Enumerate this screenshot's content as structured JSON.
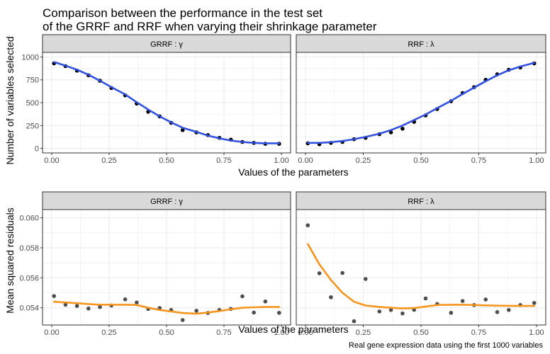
{
  "title": {
    "line1": "Comparison between the performance in the test set",
    "line2": "of the GRRF and RRF when varying their shrinkage parameter"
  },
  "caption": "Real gene expression data using the first 1000 variables",
  "colors": {
    "panel_strip": "#d9d9d9",
    "grid": "#ebebeb",
    "smooth_top": "#3152e0",
    "smooth_bottom": "#f7941d",
    "points_top": "#000000",
    "points_bottom": "#4d4d4d"
  },
  "chart_data": [
    {
      "type": "scatter",
      "facet": "GRRF : γ",
      "xlabel": "Values of the parameters",
      "ylabel": "Number of variables selected",
      "xlim": [
        0,
        1
      ],
      "ylim": [
        0,
        1000
      ],
      "x_ticks": [
        "0.00",
        "0.25",
        "0.50",
        "0.75",
        "1.00"
      ],
      "y_ticks": [
        "0",
        "250",
        "500",
        "750",
        "1000"
      ],
      "grid": true,
      "points": {
        "x": [
          0.01,
          0.06,
          0.11,
          0.16,
          0.21,
          0.26,
          0.32,
          0.37,
          0.42,
          0.47,
          0.52,
          0.57,
          0.63,
          0.68,
          0.73,
          0.78,
          0.83,
          0.88,
          0.93,
          0.99
        ],
        "y": [
          930,
          900,
          850,
          800,
          740,
          660,
          580,
          490,
          400,
          350,
          280,
          200,
          175,
          145,
          115,
          95,
          70,
          60,
          50,
          50
        ]
      },
      "smooth": {
        "x": [
          0.01,
          0.06,
          0.11,
          0.16,
          0.21,
          0.26,
          0.32,
          0.37,
          0.42,
          0.47,
          0.52,
          0.57,
          0.63,
          0.68,
          0.73,
          0.78,
          0.83,
          0.88,
          0.93,
          0.99
        ],
        "y": [
          945,
          905,
          860,
          805,
          740,
          670,
          590,
          505,
          425,
          350,
          285,
          225,
          180,
          140,
          110,
          85,
          70,
          60,
          55,
          55
        ]
      }
    },
    {
      "type": "scatter",
      "facet": "RRF : λ",
      "xlabel": "Values of the parameters",
      "ylabel": "Number of variables selected",
      "xlim": [
        0,
        1
      ],
      "ylim": [
        0,
        1000
      ],
      "x_ticks": [
        "0.00",
        "0.25",
        "0.50",
        "0.75",
        "1.00"
      ],
      "grid": true,
      "points": {
        "x": [
          0.01,
          0.06,
          0.11,
          0.16,
          0.21,
          0.26,
          0.32,
          0.37,
          0.42,
          0.47,
          0.52,
          0.57,
          0.63,
          0.68,
          0.73,
          0.78,
          0.83,
          0.88,
          0.93,
          0.99
        ],
        "y": [
          55,
          45,
          60,
          70,
          100,
          115,
          155,
          175,
          215,
          290,
          360,
          430,
          515,
          605,
          670,
          750,
          810,
          860,
          885,
          930
        ]
      },
      "smooth": {
        "x": [
          0.01,
          0.06,
          0.11,
          0.16,
          0.21,
          0.26,
          0.32,
          0.37,
          0.42,
          0.47,
          0.52,
          0.57,
          0.63,
          0.68,
          0.73,
          0.78,
          0.83,
          0.88,
          0.93,
          0.99
        ],
        "y": [
          60,
          60,
          68,
          80,
          100,
          125,
          160,
          200,
          250,
          310,
          370,
          440,
          520,
          595,
          665,
          735,
          800,
          855,
          895,
          935
        ]
      }
    },
    {
      "type": "scatter",
      "facet": "GRRF : γ",
      "xlabel": "Values of the parameters",
      "ylabel": "Mean squared residuals",
      "xlim": [
        0,
        1
      ],
      "ylim": [
        0.0532,
        0.0602
      ],
      "x_ticks": [
        "0.00",
        "0.25",
        "0.50",
        "0.75",
        "1.00"
      ],
      "y_ticks": [
        "0.054",
        "0.056",
        "0.058",
        "0.060"
      ],
      "grid": true,
      "points": {
        "x": [
          0.01,
          0.06,
          0.11,
          0.16,
          0.21,
          0.26,
          0.32,
          0.37,
          0.42,
          0.47,
          0.52,
          0.57,
          0.63,
          0.68,
          0.73,
          0.78,
          0.83,
          0.88,
          0.93,
          0.99
        ],
        "y": [
          0.05478,
          0.0542,
          0.05412,
          0.05395,
          0.05405,
          0.05415,
          0.05456,
          0.05435,
          0.05392,
          0.05398,
          0.05385,
          0.05318,
          0.0538,
          0.05365,
          0.05385,
          0.05392,
          0.05476,
          0.05368,
          0.05442,
          0.05366
        ]
      },
      "smooth": {
        "x": [
          0.01,
          0.06,
          0.11,
          0.16,
          0.21,
          0.26,
          0.32,
          0.37,
          0.42,
          0.47,
          0.52,
          0.57,
          0.63,
          0.68,
          0.73,
          0.78,
          0.83,
          0.88,
          0.93,
          0.99
        ],
        "y": [
          0.0544,
          0.05435,
          0.0543,
          0.05425,
          0.0542,
          0.0542,
          0.0542,
          0.05418,
          0.054,
          0.05385,
          0.05375,
          0.05365,
          0.0536,
          0.05368,
          0.05378,
          0.0539,
          0.054,
          0.05403,
          0.05405,
          0.05405
        ]
      }
    },
    {
      "type": "scatter",
      "facet": "RRF : λ",
      "xlabel": "Values of the parameters",
      "ylabel": "Mean squared residuals",
      "xlim": [
        0,
        1
      ],
      "ylim": [
        0.0532,
        0.0602
      ],
      "x_ticks": [
        "0.00",
        "0.25",
        "0.50",
        "0.75",
        "1.00"
      ],
      "grid": true,
      "points": {
        "x": [
          0.01,
          0.06,
          0.11,
          0.16,
          0.21,
          0.26,
          0.32,
          0.37,
          0.42,
          0.47,
          0.52,
          0.57,
          0.63,
          0.68,
          0.73,
          0.78,
          0.83,
          0.88,
          0.93,
          0.99
        ],
        "y": [
          0.0595,
          0.0563,
          0.0547,
          0.05632,
          0.0531,
          0.05592,
          0.05375,
          0.05385,
          0.05362,
          0.05386,
          0.05462,
          0.05425,
          0.05366,
          0.05445,
          0.05418,
          0.05455,
          0.05371,
          0.05385,
          0.05418,
          0.05432
        ]
      },
      "smooth": {
        "x": [
          0.01,
          0.06,
          0.11,
          0.16,
          0.21,
          0.26,
          0.32,
          0.37,
          0.42,
          0.47,
          0.52,
          0.57,
          0.63,
          0.68,
          0.73,
          0.78,
          0.83,
          0.88,
          0.93,
          0.99
        ],
        "y": [
          0.05825,
          0.0569,
          0.05585,
          0.055,
          0.0544,
          0.05415,
          0.05405,
          0.054,
          0.05395,
          0.05398,
          0.05408,
          0.05418,
          0.0542,
          0.0542,
          0.05418,
          0.05416,
          0.05414,
          0.05413,
          0.05412,
          0.05412
        ]
      }
    }
  ]
}
